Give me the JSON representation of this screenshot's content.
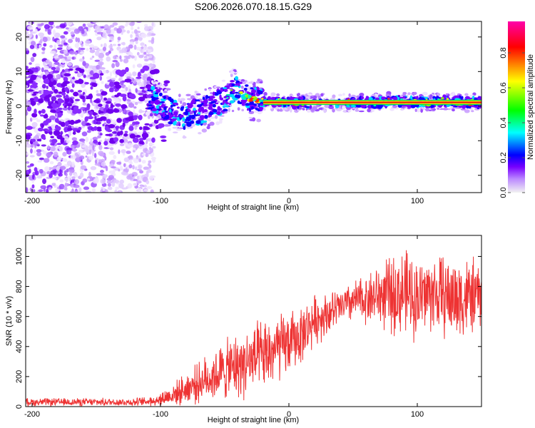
{
  "title": "S206.2026.070.18.15.G29",
  "chart_data": [
    {
      "type": "heatmap",
      "xlabel": "Height of straight line (km)",
      "ylabel": "Frequency (Hz)",
      "xlim": [
        -205,
        150
      ],
      "ylim": [
        -25,
        24.5
      ],
      "xticks": [
        -200,
        -100,
        0,
        100
      ],
      "yticks": [
        -20,
        -10,
        0,
        10,
        20
      ],
      "colorbar": {
        "label": "Normalized spectral amplitude",
        "range": [
          0,
          0.98
        ],
        "ticks": [
          0.0,
          0.2,
          0.4,
          0.6,
          0.8
        ],
        "colormap": [
          "#f2f2f2",
          "#7700ff",
          "#0000ff",
          "#00ffff",
          "#00ff00",
          "#ffff00",
          "#ff0000",
          "#ff00aa"
        ]
      },
      "frequency_trace": {
        "x": [
          -110,
          -100,
          -90,
          -80,
          -75,
          -70,
          -60,
          -50,
          -45,
          -40,
          -35,
          -30,
          -20,
          -10,
          0,
          10,
          20,
          30,
          40,
          50,
          60,
          70,
          80,
          90,
          100,
          110,
          120,
          130,
          140,
          150
        ],
        "y": [
          3,
          1,
          -2,
          -3.5,
          -1,
          -2,
          0,
          2,
          4,
          5,
          3,
          2,
          1.5,
          1.2,
          1,
          1,
          1,
          1,
          1,
          1,
          1,
          1,
          1.5,
          1.5,
          1.2,
          1,
          1.5,
          1.3,
          1,
          1
        ]
      },
      "carrier_line_hz": 1
    },
    {
      "type": "line",
      "xlabel": "Height of straight line (km)",
      "ylabel": "SNR (10 * v/v)",
      "xlim": [
        -205,
        150
      ],
      "ylim": [
        0,
        1140
      ],
      "xticks": [
        -200,
        -100,
        0,
        100
      ],
      "yticks": [
        0,
        200,
        400,
        600,
        800,
        1000
      ],
      "color": "#ee3333",
      "series": [
        {
          "name": "SNR",
          "x": [
            -205,
            -180,
            -150,
            -120,
            -110,
            -100,
            -90,
            -80,
            -70,
            -60,
            -50,
            -40,
            -30,
            -20,
            -10,
            0,
            10,
            20,
            30,
            40,
            50,
            60,
            70,
            80,
            90,
            100,
            110,
            120,
            130,
            140,
            150
          ],
          "y": [
            30,
            30,
            30,
            30,
            35,
            50,
            80,
            120,
            160,
            200,
            240,
            270,
            300,
            330,
            380,
            420,
            480,
            580,
            620,
            660,
            700,
            720,
            740,
            740,
            760,
            720,
            760,
            740,
            720,
            730,
            740
          ],
          "spread": [
            25,
            25,
            25,
            25,
            30,
            50,
            70,
            100,
            130,
            160,
            190,
            210,
            230,
            230,
            230,
            200,
            180,
            160,
            140,
            120,
            130,
            160,
            200,
            250,
            280,
            260,
            250,
            260,
            280,
            260,
            200
          ]
        }
      ]
    }
  ]
}
